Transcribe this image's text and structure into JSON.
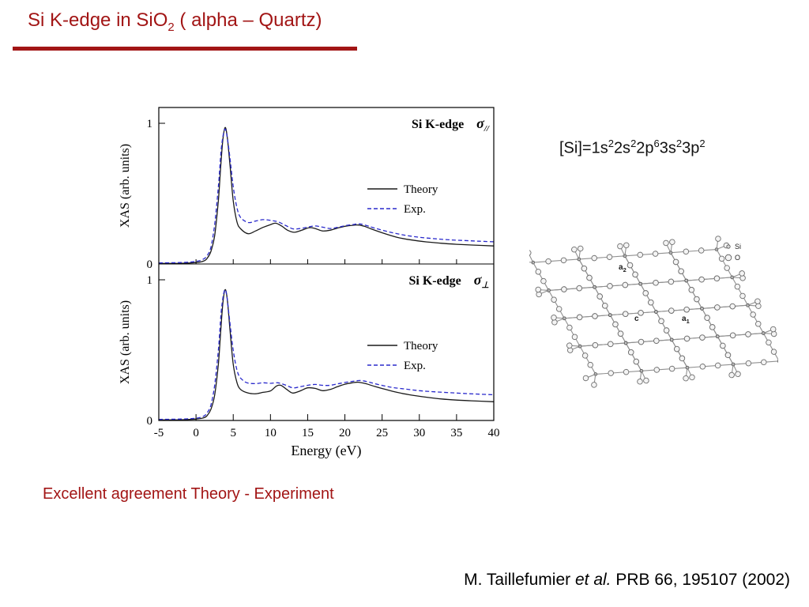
{
  "title": {
    "pre": "Si K-edge in SiO",
    "sub": "2",
    "post": " ( alpha – Quartz)"
  },
  "agreement_text": "Excellent agreement Theory - Experiment",
  "citation": {
    "pre": "M. Taillefumier ",
    "italic": "et al.",
    "post": " PRB 66, 195107 (2002)"
  },
  "electron_config": {
    "segments": [
      {
        "t": "[Si]=1s",
        "sup": "2"
      },
      {
        "t": "2s",
        "sup": "2"
      },
      {
        "t": "2p",
        "sup": "6"
      },
      {
        "t": "3s",
        "sup": "2"
      },
      {
        "t": "3p",
        "sup": "2"
      }
    ]
  },
  "colors": {
    "accent_red": "#a21515",
    "theory": "#1a1a1a",
    "exp": "#2a2acc",
    "structure_gray": "#909090"
  },
  "crystal": {
    "legend": [
      {
        "symbol": "small-circle",
        "label": "Si"
      },
      {
        "symbol": "large-circle",
        "label": "O"
      }
    ],
    "axis_labels": [
      {
        "base": "a",
        "sub": "2",
        "x": 113,
        "y": 56
      },
      {
        "base": "c",
        "sub": "",
        "x": 133,
        "y": 121
      },
      {
        "base": "a",
        "sub": "1",
        "x": 193,
        "y": 121
      }
    ]
  },
  "chart_data": [
    {
      "type": "line",
      "panel": "top",
      "title": "Si K-edge",
      "sigma": "σ",
      "sigma_sub": "//",
      "xlabel": "Energy (eV)",
      "ylabel": "XAS (arb. units)",
      "xlim": [
        -5,
        40
      ],
      "ylim": [
        0,
        1.1
      ],
      "xticks": [
        -5,
        0,
        5,
        10,
        15,
        20,
        25,
        30,
        35,
        40
      ],
      "yticks": [
        0,
        1
      ],
      "legend": [
        {
          "name": "Theory",
          "style": "solid"
        },
        {
          "name": "Exp.",
          "style": "dashed"
        }
      ],
      "series": [
        {
          "name": "Theory",
          "x": [
            -5,
            -2,
            0,
            1,
            1.5,
            2,
            2.5,
            3,
            3.3,
            3.6,
            3.9,
            4.2,
            4.6,
            5,
            5.5,
            6,
            7,
            8,
            9,
            10,
            10.7,
            11.5,
            12.3,
            13.2,
            14.2,
            15.2,
            16,
            17,
            18,
            19,
            20,
            21,
            21.8,
            22.6,
            23.5,
            25,
            27,
            29,
            31,
            33,
            35,
            37,
            40
          ],
          "y": [
            0.004,
            0.005,
            0.01,
            0.02,
            0.04,
            0.09,
            0.2,
            0.45,
            0.68,
            0.88,
            0.97,
            0.9,
            0.68,
            0.45,
            0.3,
            0.25,
            0.215,
            0.235,
            0.26,
            0.28,
            0.29,
            0.27,
            0.24,
            0.225,
            0.24,
            0.258,
            0.252,
            0.235,
            0.24,
            0.255,
            0.268,
            0.275,
            0.277,
            0.268,
            0.25,
            0.222,
            0.19,
            0.17,
            0.157,
            0.147,
            0.14,
            0.135,
            0.128
          ]
        },
        {
          "name": "Exp.",
          "x": [
            -5,
            -2,
            0,
            1,
            1.5,
            2,
            2.5,
            3,
            3.4,
            3.8,
            4.1,
            4.5,
            5,
            5.5,
            6,
            7,
            8,
            9,
            10,
            11,
            12,
            13,
            14,
            15,
            16,
            17,
            18,
            19,
            20,
            21,
            22,
            23,
            24,
            26,
            28,
            30,
            32,
            34,
            36,
            38,
            40
          ],
          "y": [
            0.008,
            0.01,
            0.018,
            0.035,
            0.06,
            0.12,
            0.28,
            0.55,
            0.82,
            0.95,
            0.93,
            0.78,
            0.55,
            0.4,
            0.33,
            0.295,
            0.305,
            0.315,
            0.31,
            0.3,
            0.275,
            0.25,
            0.252,
            0.262,
            0.27,
            0.262,
            0.252,
            0.26,
            0.272,
            0.28,
            0.285,
            0.272,
            0.255,
            0.227,
            0.205,
            0.19,
            0.18,
            0.172,
            0.167,
            0.162,
            0.158
          ]
        }
      ]
    },
    {
      "type": "line",
      "panel": "bottom",
      "title": "Si K-edge",
      "sigma": "σ",
      "sigma_sub": "⊥",
      "xlabel": "Energy (eV)",
      "ylabel": "XAS (arb. units)",
      "xlim": [
        -5,
        40
      ],
      "ylim": [
        0,
        1.1
      ],
      "xticks": [
        -5,
        0,
        5,
        10,
        15,
        20,
        25,
        30,
        35,
        40
      ],
      "yticks": [
        0,
        1
      ],
      "legend": [
        {
          "name": "Theory",
          "style": "solid"
        },
        {
          "name": "Exp.",
          "style": "dashed"
        }
      ],
      "series": [
        {
          "name": "Theory",
          "x": [
            -5,
            -2,
            0,
            1,
            1.5,
            2,
            2.5,
            3,
            3.3,
            3.6,
            3.9,
            4.2,
            4.6,
            5,
            5.5,
            6,
            7,
            8,
            9,
            10,
            10.8,
            11.4,
            12.2,
            13,
            14,
            15,
            16,
            17,
            18,
            19,
            20,
            21,
            21.8,
            22.8,
            24,
            25.5,
            27,
            29,
            31,
            33,
            35,
            37,
            40
          ],
          "y": [
            0.004,
            0.005,
            0.01,
            0.018,
            0.035,
            0.08,
            0.18,
            0.4,
            0.62,
            0.83,
            0.93,
            0.86,
            0.62,
            0.4,
            0.27,
            0.22,
            0.195,
            0.19,
            0.2,
            0.21,
            0.245,
            0.25,
            0.22,
            0.195,
            0.21,
            0.232,
            0.228,
            0.212,
            0.22,
            0.24,
            0.258,
            0.268,
            0.272,
            0.262,
            0.242,
            0.22,
            0.2,
            0.18,
            0.165,
            0.153,
            0.145,
            0.14,
            0.133
          ]
        },
        {
          "name": "Exp.",
          "x": [
            -5,
            -2,
            0,
            1,
            1.5,
            2,
            2.5,
            3,
            3.4,
            3.8,
            4.1,
            4.5,
            5,
            5.6,
            6.3,
            7,
            8,
            9,
            10,
            11,
            12,
            13,
            14,
            15,
            16,
            17,
            18,
            19,
            20,
            21,
            22,
            23,
            24,
            26,
            28,
            30,
            32,
            34,
            36,
            38,
            40
          ],
          "y": [
            0.008,
            0.01,
            0.016,
            0.03,
            0.055,
            0.11,
            0.25,
            0.5,
            0.78,
            0.92,
            0.9,
            0.72,
            0.5,
            0.34,
            0.285,
            0.266,
            0.262,
            0.268,
            0.264,
            0.268,
            0.252,
            0.232,
            0.24,
            0.25,
            0.256,
            0.25,
            0.25,
            0.26,
            0.27,
            0.278,
            0.284,
            0.276,
            0.262,
            0.238,
            0.224,
            0.212,
            0.204,
            0.198,
            0.192,
            0.187,
            0.183
          ]
        }
      ]
    }
  ]
}
